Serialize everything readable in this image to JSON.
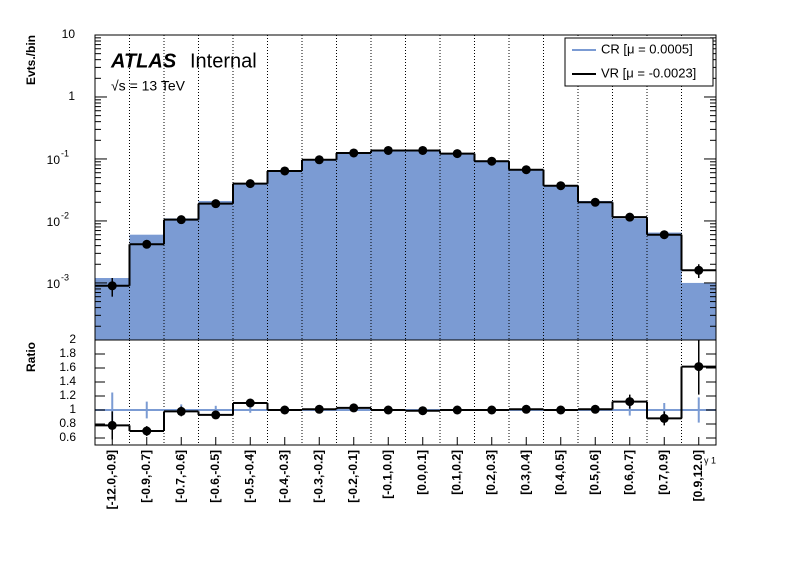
{
  "chart_data": {
    "type": "histogram_ratio",
    "y_label": "Evts./bin",
    "ratio_label": "Ratio",
    "x_label": "γ 1",
    "experiment": "ATLAS",
    "status": "Internal",
    "energy": "√s = 13 TeV",
    "categories": [
      "[-12.0,-0.9]",
      "[-0.9,-0.7]",
      "[-0.7,-0.6]",
      "[-0.6,-0.5]",
      "[-0.5,-0.4]",
      "[-0.4,-0.3]",
      "[-0.3,-0.2]",
      "[-0.2,-0.1]",
      "[-0.1,0.0]",
      "[0.0,0.1]",
      "[0.1,0.2]",
      "[0.2,0.3]",
      "[0.3,0.4]",
      "[0.4,0.5]",
      "[0.5,0.6]",
      "[0.6,0.7]",
      "[0.7,0.9]",
      "[0.9,12.0]"
    ],
    "series": [
      {
        "name": "CR [μ = 0.0005]",
        "color": "#7b9bd3",
        "values": [
          0.0012,
          0.006,
          0.011,
          0.021,
          0.04,
          0.065,
          0.098,
          0.125,
          0.14,
          0.14,
          0.125,
          0.095,
          0.068,
          0.038,
          0.021,
          0.011,
          0.0065,
          0.001
        ],
        "ratio_values": [
          1,
          1,
          1,
          1,
          1,
          1,
          1,
          1,
          1,
          1,
          1,
          1,
          1,
          1,
          1,
          1,
          1,
          1
        ],
        "ratio_errors": [
          0.25,
          0.12,
          0.08,
          0.06,
          0.04,
          0.03,
          0.02,
          0.02,
          0.02,
          0.02,
          0.02,
          0.02,
          0.03,
          0.03,
          0.05,
          0.08,
          0.1,
          0.18
        ]
      },
      {
        "name": "VR [μ = -0.0023]",
        "color": "#000000",
        "values": [
          0.0009,
          0.0042,
          0.0105,
          0.019,
          0.04,
          0.064,
          0.097,
          0.125,
          0.137,
          0.137,
          0.122,
          0.092,
          0.067,
          0.037,
          0.02,
          0.0115,
          0.006,
          0.0016
        ],
        "errors": [
          0.0003,
          0.0005,
          0.0008,
          0.001,
          0.002,
          0.002,
          0.003,
          0.003,
          0.003,
          0.003,
          0.003,
          0.003,
          0.002,
          0.002,
          0.001,
          0.001,
          0.0006,
          0.0004
        ],
        "ratio_values": [
          0.78,
          0.7,
          0.98,
          0.93,
          1.1,
          1.0,
          1.01,
          1.03,
          1.0,
          0.99,
          1.0,
          1.0,
          1.01,
          1.0,
          1.01,
          1.12,
          0.88,
          1.62
        ],
        "ratio_errors": [
          0.2,
          0.07,
          0.07,
          0.05,
          0.04,
          0.02,
          0.02,
          0.02,
          0.02,
          0.02,
          0.02,
          0.02,
          0.02,
          0.03,
          0.04,
          0.1,
          0.1,
          0.4
        ]
      }
    ],
    "log_y": true,
    "grid_x": true,
    "ylim": [
      0.00012,
      10
    ],
    "yticks": [
      10,
      1,
      {
        "value": 0.1,
        "label": "10",
        "exponent": "-1"
      },
      {
        "value": 0.01,
        "label": "10",
        "exponent": "-2"
      },
      {
        "value": 0.001,
        "label": "10",
        "exponent": "-3"
      }
    ],
    "ratio_ylim": [
      0.5,
      2
    ],
    "ratio_yticks": [
      0.6,
      0.8,
      1,
      1.2,
      1.4,
      1.6,
      1.8,
      2
    ],
    "legend": "upper right"
  }
}
